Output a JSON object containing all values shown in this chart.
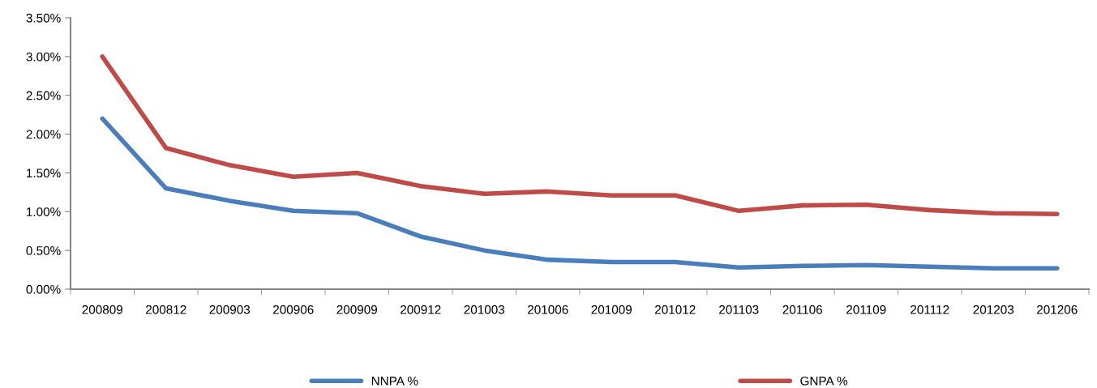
{
  "chart_data": {
    "type": "line",
    "categories": [
      "200809",
      "200812",
      "200903",
      "200906",
      "200909",
      "200912",
      "201003",
      "201006",
      "201009",
      "201012",
      "201103",
      "201106",
      "201109",
      "201112",
      "201203",
      "201206"
    ],
    "series": [
      {
        "name": "NNPA %",
        "color": "#4a7ebb",
        "values": [
          2.2,
          1.3,
          1.14,
          1.01,
          0.98,
          0.68,
          0.5,
          0.38,
          0.35,
          0.35,
          0.28,
          0.3,
          0.31,
          0.29,
          0.27,
          0.27
        ]
      },
      {
        "name": "GNPA %",
        "color": "#be4b48",
        "values": [
          3.0,
          1.82,
          1.6,
          1.45,
          1.5,
          1.33,
          1.23,
          1.26,
          1.21,
          1.21,
          1.01,
          1.08,
          1.09,
          1.02,
          0.98,
          0.97
        ]
      }
    ],
    "ylim": [
      0,
      3.5
    ],
    "yticks": [
      {
        "value": 0,
        "label": "0.00%"
      },
      {
        "value": 0.5,
        "label": "0.50%"
      },
      {
        "value": 1,
        "label": "1.00%"
      },
      {
        "value": 1.5,
        "label": "1.50%"
      },
      {
        "value": 2,
        "label": "2.00%"
      },
      {
        "value": 2.5,
        "label": "2.50%"
      },
      {
        "value": 3,
        "label": "3.00%"
      },
      {
        "value": 3.5,
        "label": "3.50%"
      }
    ],
    "grid": false,
    "legend": "bottom",
    "marker": "none",
    "line_style": "solid"
  }
}
